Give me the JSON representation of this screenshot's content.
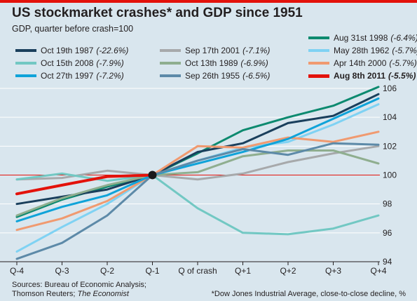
{
  "header": {
    "title": "US stockmarket crashes* and GDP since 1951",
    "subtitle": "GDP, quarter before crash=100"
  },
  "footer": {
    "source_line1": "Sources: Bureau of Economic Analysis;",
    "source_line2_prefix": "Thomson Reuters; ",
    "source_line2_italic": "The Economist",
    "footnote": "*Dow Jones Industrial Average, close-to-close decline, %"
  },
  "colors": {
    "background": "#d9e6ee",
    "gridline": "#ffffff",
    "reference_line": "#e3120b",
    "accent_bar": "#e3120b"
  },
  "chart_data": {
    "type": "line",
    "title": "US stockmarket crashes* and GDP since 1951",
    "subtitle": "GDP, quarter before crash=100",
    "x": [
      "Q-4",
      "Q-3",
      "Q-2",
      "Q-1",
      "Q of crash",
      "Q+1",
      "Q+2",
      "Q+3",
      "Q+4"
    ],
    "ylim": [
      94,
      106
    ],
    "yticks": [
      94,
      96,
      98,
      100,
      102,
      104,
      106
    ],
    "grid": true,
    "reference_line": 100,
    "y_axis_side": "right",
    "legend_placement": "top",
    "highlight_marker": {
      "x": "Q-1",
      "y": 100
    },
    "series": [
      {
        "name": "Aug 31st 1998",
        "pct": "(-6.4%)",
        "color": "#0d8a6f",
        "values": [
          97.1,
          98.3,
          99.2,
          100,
          101.5,
          103.1,
          104.0,
          104.8,
          106.1
        ]
      },
      {
        "name": "Oct 19th 1987",
        "pct": "(-22.6%)",
        "color": "#1a3f5c",
        "values": [
          98.0,
          98.5,
          99.0,
          100,
          101.6,
          102.2,
          103.6,
          104.1,
          105.6
        ]
      },
      {
        "name": "Sep 17th 2001",
        "pct": "(-7.1%)",
        "color": "#a7a9ab",
        "values": [
          99.7,
          99.8,
          100.3,
          100,
          99.7,
          100.1,
          100.9,
          101.5,
          102.0
        ]
      },
      {
        "name": "May 28th 1962",
        "pct": "(-5.7%)",
        "color": "#7fd2f3",
        "values": [
          94.7,
          96.4,
          98.0,
          100,
          101.0,
          101.9,
          102.3,
          103.5,
          104.9
        ]
      },
      {
        "name": "Oct 15th 2008",
        "pct": "(-7.9%)",
        "color": "#72c8c3",
        "values": [
          99.7,
          100.1,
          99.6,
          100,
          97.7,
          96.0,
          95.9,
          96.3,
          97.2
        ]
      },
      {
        "name": "Oct 13th 1989",
        "pct": "(-6.9%)",
        "color": "#8fae8f",
        "values": [
          97.2,
          98.4,
          99.3,
          100,
          100.2,
          101.3,
          101.7,
          101.7,
          100.8
        ]
      },
      {
        "name": "Apr 14th 2000",
        "pct": "(-5.7%)",
        "color": "#f09a70",
        "values": [
          96.2,
          97.0,
          98.2,
          100,
          102.0,
          101.9,
          102.6,
          102.3,
          103.0
        ]
      },
      {
        "name": "Oct 27th 1997",
        "pct": "(-7.2%)",
        "color": "#0fa3d9",
        "values": [
          96.8,
          97.8,
          98.6,
          100,
          100.8,
          101.6,
          102.5,
          103.9,
          105.3
        ]
      },
      {
        "name": "Sep 26th 1955",
        "pct": "(-6.5%)",
        "color": "#5d8aa8",
        "values": [
          94.2,
          95.3,
          97.2,
          100,
          101.0,
          101.8,
          101.4,
          102.2,
          102.1
        ]
      },
      {
        "name": "Aug 8th 2011",
        "pct": "(-5.5%)",
        "color": "#e3120b",
        "values": [
          98.7,
          99.3,
          99.9,
          100,
          null,
          null,
          null,
          null,
          null
        ],
        "bold": true
      }
    ]
  }
}
